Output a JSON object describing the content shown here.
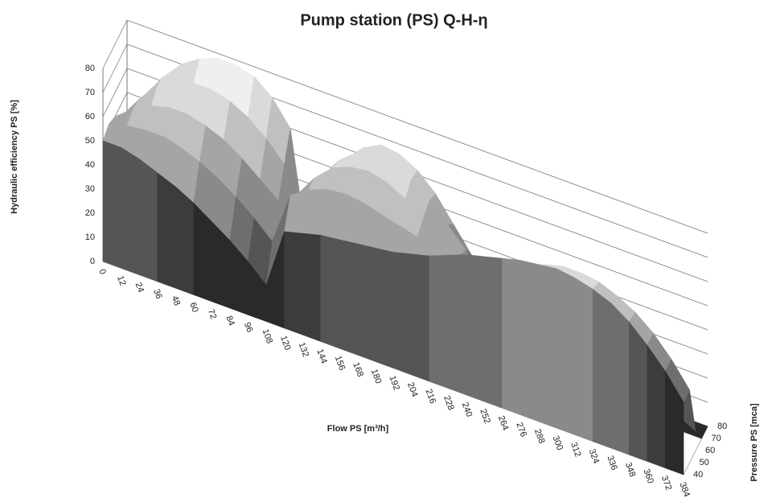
{
  "chart_data": {
    "type": "surface",
    "title": "Pump station (PS) Q-H-η",
    "x_label": "Flow PS [m³/h]",
    "y_label": "Hydraulic efficiency PS [%]",
    "z_label": "Pressure PS [mca]",
    "categories": [
      0,
      12,
      24,
      36,
      48,
      60,
      72,
      84,
      96,
      108,
      120,
      132,
      144,
      156,
      168,
      180,
      192,
      204,
      216,
      228,
      240,
      252,
      264,
      276,
      288,
      300,
      312,
      324,
      336,
      348,
      360,
      372,
      384
    ],
    "zticks": [
      40,
      50,
      60,
      70,
      80
    ],
    "ylim": [
      0,
      80
    ],
    "yticks": [
      0,
      10,
      20,
      30,
      40,
      50,
      60,
      70,
      80
    ],
    "grid": true,
    "colors": [
      "#2a2a2a",
      "#3c3c3c",
      "#555555",
      "#6e6e6e",
      "#8a8a8a",
      "#a5a5a5",
      "#c0c0c0",
      "#dadada",
      "#efefef"
    ],
    "series": [
      {
        "values": [
          50,
          50,
          48,
          45,
          42,
          38,
          33,
          28,
          22,
          15,
          40,
          42,
          44,
          45,
          46,
          47,
          48,
          50,
          52,
          55,
          58,
          60,
          62,
          64,
          65,
          66,
          65,
          63,
          60,
          55,
          48,
          40,
          30
        ]
      },
      {
        "values": [
          52,
          54,
          55,
          55,
          53,
          50,
          46,
          41,
          35,
          28,
          50,
          55,
          58,
          59,
          58,
          56,
          54,
          52,
          50,
          50,
          50,
          52,
          55,
          57,
          60,
          62,
          62,
          61,
          58,
          54,
          48,
          40,
          30
        ]
      },
      {
        "values": [
          50,
          56,
          60,
          62,
          62,
          60,
          57,
          52,
          46,
          40,
          45,
          55,
          62,
          65,
          66,
          64,
          60,
          55,
          50,
          45,
          40,
          36,
          33,
          30,
          30,
          30,
          28,
          26,
          23,
          20,
          16,
          12,
          8
        ]
      },
      {
        "values": [
          45,
          55,
          63,
          68,
          70,
          70,
          68,
          64,
          58,
          50,
          30,
          50,
          60,
          66,
          68,
          67,
          63,
          57,
          50,
          42,
          33,
          24,
          16,
          10,
          8,
          6,
          4,
          3,
          2,
          1,
          1,
          0,
          0
        ]
      },
      {
        "values": [
          40,
          52,
          62,
          70,
          75,
          78,
          78,
          76,
          70,
          60,
          10,
          40,
          55,
          63,
          67,
          66,
          62,
          55,
          45,
          35,
          25,
          15,
          8,
          5,
          4,
          3,
          2,
          2,
          1,
          1,
          0,
          0,
          0
        ]
      }
    ]
  }
}
